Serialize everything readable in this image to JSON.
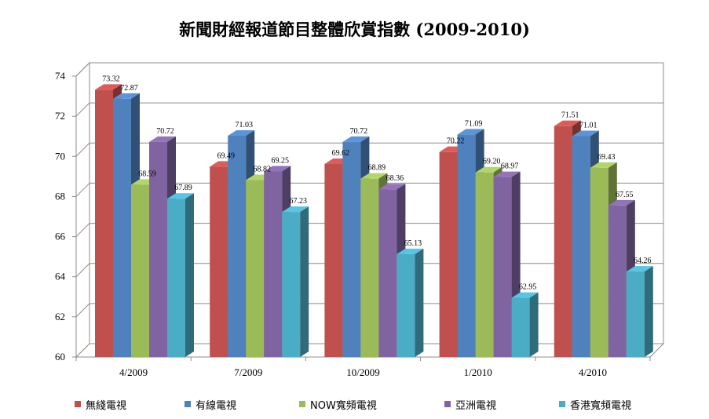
{
  "chart_data": {
    "type": "bar",
    "title": "新聞財經報道節目整體欣賞指數 (2009-2010)",
    "categories": [
      "4/2009",
      "7/2009",
      "10/2009",
      "1/2010",
      "4/2010"
    ],
    "ylim": [
      60,
      74
    ],
    "yticks": [
      60,
      62,
      64,
      66,
      68,
      70,
      72,
      74
    ],
    "grid": true,
    "legend_position": "bottom",
    "series": [
      {
        "name": "無綫電視",
        "color": "#C0504D",
        "values": [
          73.32,
          69.49,
          69.62,
          70.22,
          71.51
        ]
      },
      {
        "name": "有線電視",
        "color": "#4F81BD",
        "values": [
          72.87,
          71.03,
          70.72,
          71.09,
          71.01
        ]
      },
      {
        "name": "NOW寬頻電視",
        "color": "#9BBB59",
        "values": [
          68.59,
          68.82,
          68.89,
          69.2,
          69.43
        ]
      },
      {
        "name": "亞洲電視",
        "color": "#8064A2",
        "values": [
          70.72,
          69.25,
          68.36,
          68.97,
          67.55
        ]
      },
      {
        "name": "香港寬頻電視",
        "color": "#4BACC6",
        "values": [
          67.89,
          67.23,
          65.13,
          62.95,
          64.26
        ]
      }
    ],
    "data_labels": [
      [
        "73.32",
        "69.49",
        "69.62",
        "70.22",
        "71.51"
      ],
      [
        "72.87",
        "71.03",
        "70.72",
        "71.09",
        "71.01"
      ],
      [
        "68.59",
        "68.82",
        "68.89",
        "69.20",
        "69.43"
      ],
      [
        "70.72",
        "69.25",
        "68.36",
        "68.97",
        "67.55"
      ],
      [
        "67.89",
        "67.23",
        "65.13",
        "62.95",
        "64.26"
      ]
    ]
  }
}
